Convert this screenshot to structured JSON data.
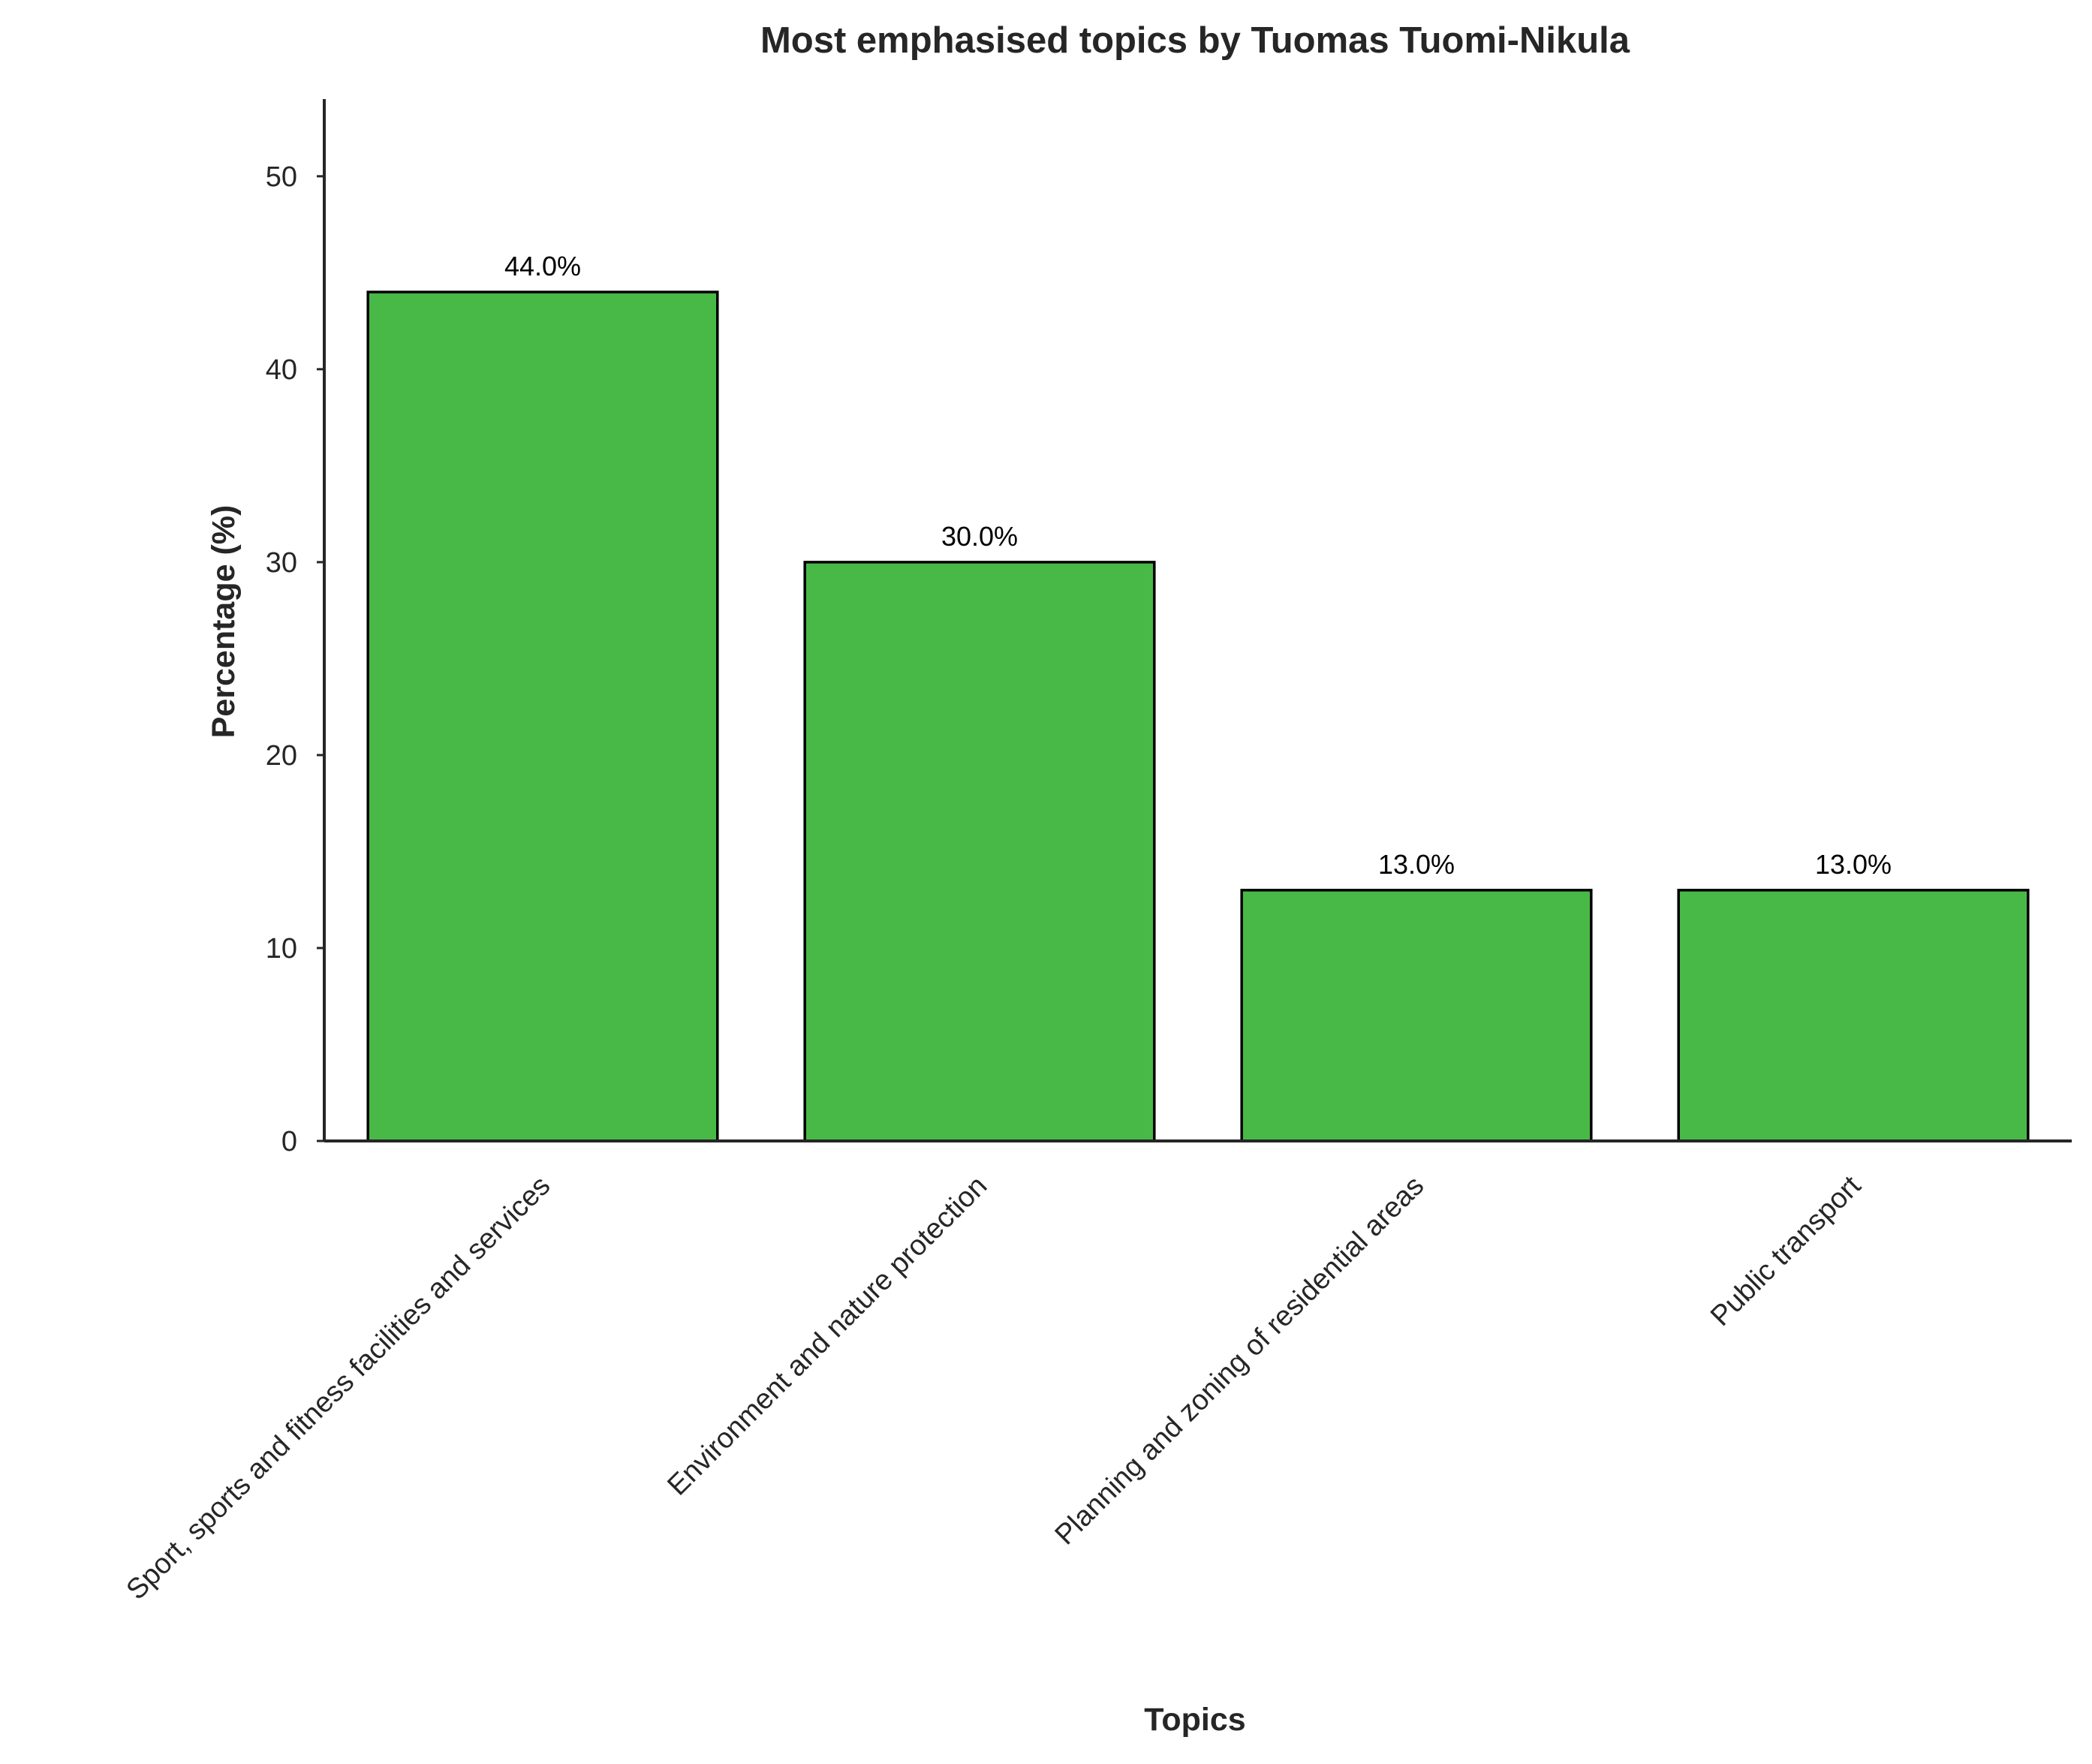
{
  "chart_data": {
    "type": "bar",
    "title": "Most emphasised topics by Tuomas Tuomi-Nikula",
    "xlabel": "Topics",
    "ylabel": "Percentage (%)",
    "categories": [
      "Sport, sports and fitness facilities and services",
      "Environment and nature protection",
      "Planning and zoning of residential areas",
      "Public transport"
    ],
    "values": [
      44.0,
      30.0,
      13.0,
      13.0
    ],
    "value_labels": [
      "44.0%",
      "30.0%",
      "13.0%",
      "13.0%"
    ],
    "yticks": [
      0,
      10,
      20,
      30,
      40,
      50
    ],
    "ytick_labels": [
      "0",
      "10",
      "20",
      "30",
      "40",
      "50"
    ],
    "ylim": [
      0,
      54
    ],
    "grid": false,
    "legend": "none",
    "bar_color": "#48b947",
    "bar_edge_color": "#000000"
  }
}
